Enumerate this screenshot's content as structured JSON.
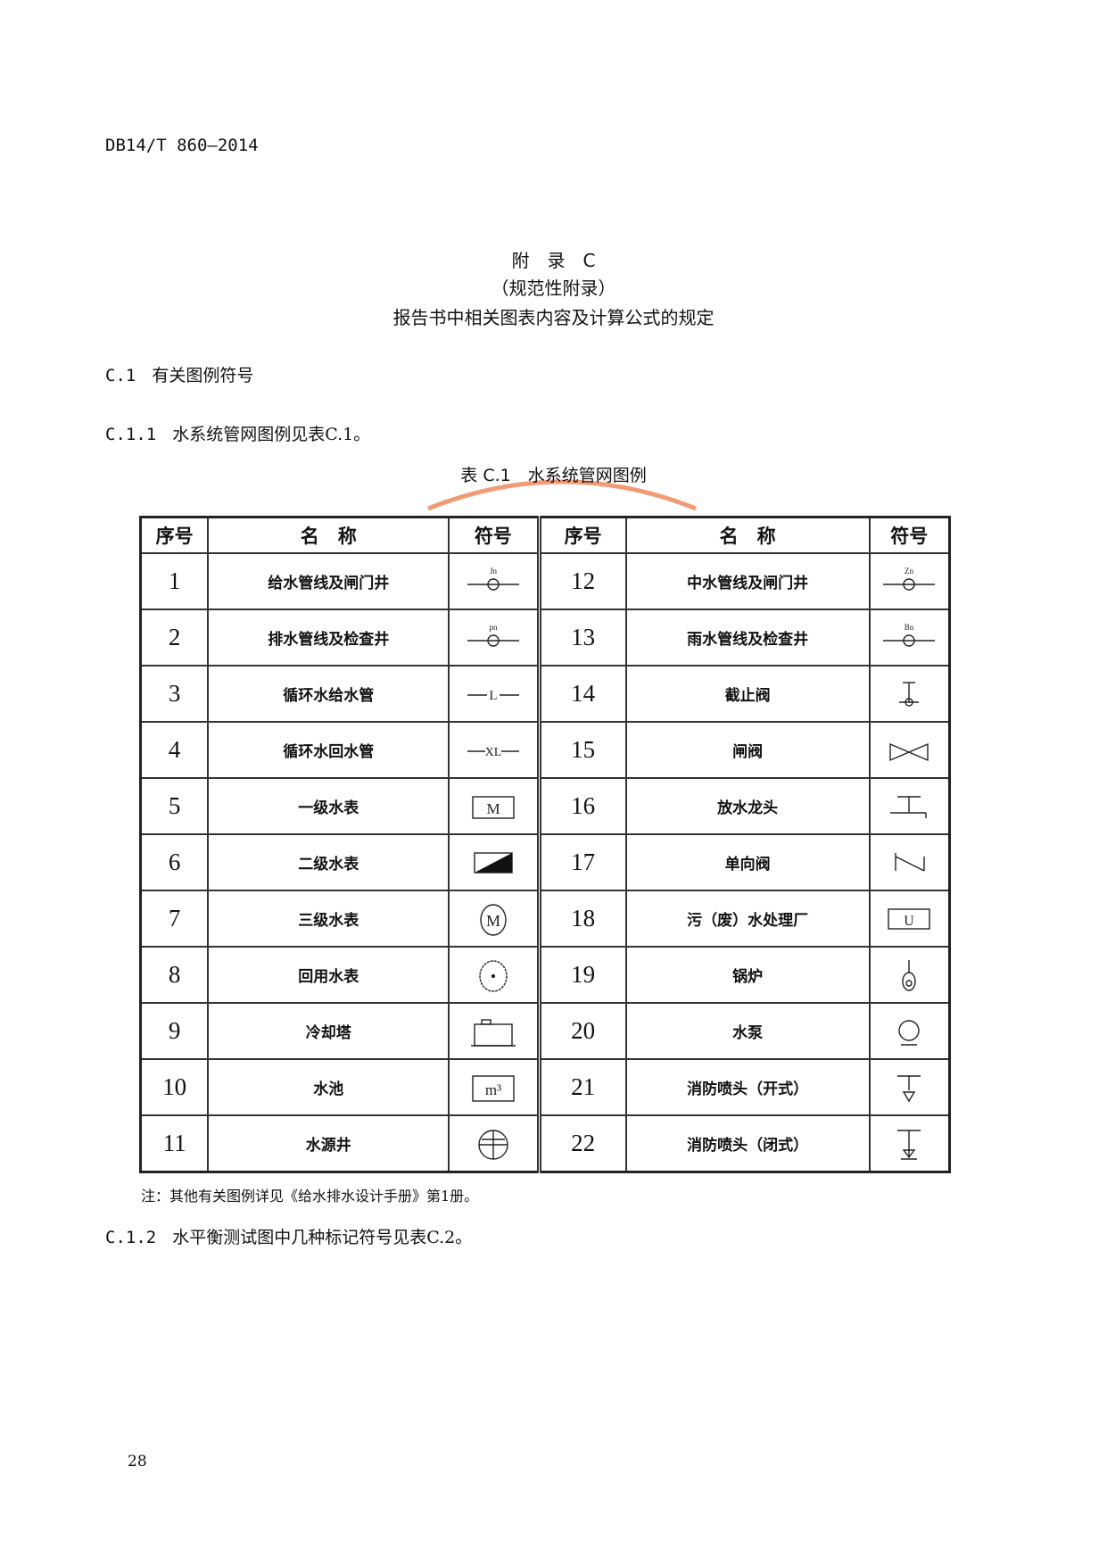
{
  "header": {
    "doc_code": "DB14/T 860—2014"
  },
  "appendix": {
    "title": "附　录　C",
    "subtitle": "（规范性附录）",
    "heading": "报告书中相关图表内容及计算公式的规定"
  },
  "section_c1": {
    "num": "C.1",
    "title": "有关图例符号"
  },
  "section_c11": {
    "num": "C.1.1",
    "text": "水系统管网图例见表C.1。"
  },
  "table": {
    "caption": "表 C.1　水系统管网图例",
    "headers": {
      "no": "序号",
      "name": "名　称",
      "symbol": "符号"
    },
    "rows": [
      {
        "left": {
          "no": "1",
          "name": "给水管线及闸门井",
          "symbol": "circle-on-line-jn"
        },
        "right": {
          "no": "12",
          "name": "中水管线及闸门井",
          "symbol": "circle-on-line-zn"
        }
      },
      {
        "left": {
          "no": "2",
          "name": "排水管线及检查井",
          "symbol": "circle-on-line-pn"
        },
        "right": {
          "no": "13",
          "name": "雨水管线及检查井",
          "symbol": "circle-on-line-bn"
        }
      },
      {
        "left": {
          "no": "3",
          "name": "循环水给水管",
          "symbol": "line-l"
        },
        "right": {
          "no": "14",
          "name": "截止阀",
          "symbol": "stop-valve"
        }
      },
      {
        "left": {
          "no": "4",
          "name": "循环水回水管",
          "symbol": "line-xl"
        },
        "right": {
          "no": "15",
          "name": "闸阀",
          "symbol": "gate-valve"
        }
      },
      {
        "left": {
          "no": "5",
          "name": "一级水表",
          "symbol": "box-m"
        },
        "right": {
          "no": "16",
          "name": "放水龙头",
          "symbol": "faucet"
        }
      },
      {
        "left": {
          "no": "6",
          "name": "二级水表",
          "symbol": "half-filled-box"
        },
        "right": {
          "no": "17",
          "name": "单向阀",
          "symbol": "check-valve"
        }
      },
      {
        "left": {
          "no": "7",
          "name": "三级水表",
          "symbol": "circle-m"
        },
        "right": {
          "no": "18",
          "name": "污（废）水处理厂",
          "symbol": "box-u"
        }
      },
      {
        "left": {
          "no": "8",
          "name": "回用水表",
          "symbol": "circle-dot"
        },
        "right": {
          "no": "19",
          "name": "锅炉",
          "symbol": "boiler"
        }
      },
      {
        "left": {
          "no": "9",
          "name": "冷却塔",
          "symbol": "cooling-tower"
        },
        "right": {
          "no": "20",
          "name": "水泵",
          "symbol": "pump"
        }
      },
      {
        "left": {
          "no": "10",
          "name": "水池",
          "symbol": "box-m3"
        },
        "right": {
          "no": "21",
          "name": "消防喷头（开式）",
          "symbol": "sprinkler-open"
        }
      },
      {
        "left": {
          "no": "11",
          "name": "水源井",
          "symbol": "circle-cross"
        },
        "right": {
          "no": "22",
          "name": "消防喷头（闭式）",
          "symbol": "sprinkler-closed"
        }
      }
    ],
    "symbol_text": {
      "jn": "Jn",
      "zn": "Zn",
      "pn": "pn",
      "bn": "Bn",
      "l": "L",
      "xl": "XL",
      "m": "M",
      "u": "U",
      "m3": "m³"
    }
  },
  "note": "注：其他有关图例详见《给水排水设计手册》第1册。",
  "section_c12": {
    "num": "C.1.2",
    "text": "水平衡测试图中几种标记符号见表C.2。"
  },
  "page_number": "28",
  "colors": {
    "watermark_arc": "#f08a5d",
    "rule": "#333333"
  }
}
